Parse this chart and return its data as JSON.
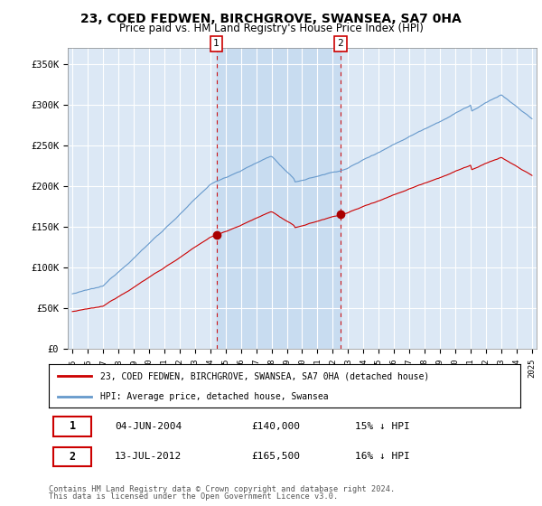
{
  "title": "23, COED FEDWEN, BIRCHGROVE, SWANSEA, SA7 0HA",
  "subtitle": "Price paid vs. HM Land Registry's House Price Index (HPI)",
  "ylim": [
    0,
    370000
  ],
  "yticks": [
    0,
    50000,
    100000,
    150000,
    200000,
    250000,
    300000,
    350000
  ],
  "ytick_labels": [
    "£0",
    "£50K",
    "£100K",
    "£150K",
    "£200K",
    "£250K",
    "£300K",
    "£350K"
  ],
  "bg_color": "#ffffff",
  "plot_bg_color": "#dce8f5",
  "grid_color": "#ffffff",
  "line1_color": "#cc0000",
  "line2_color": "#6699cc",
  "shade_color": "#c8dcf0",
  "legend1_label": "23, COED FEDWEN, BIRCHGROVE, SWANSEA, SA7 0HA (detached house)",
  "legend2_label": "HPI: Average price, detached house, Swansea",
  "marker1_value": 140000,
  "marker1_date": "04-JUN-2004",
  "marker1_pct": "15% ↓ HPI",
  "marker2_value": 165500,
  "marker2_date": "13-JUL-2012",
  "marker2_pct": "16% ↓ HPI",
  "footer1": "Contains HM Land Registry data © Crown copyright and database right 2024.",
  "footer2": "This data is licensed under the Open Government Licence v3.0.",
  "year_start": 1995,
  "year_end": 2025,
  "purchase_year1": 2004.4,
  "purchase_year2": 2012.5
}
